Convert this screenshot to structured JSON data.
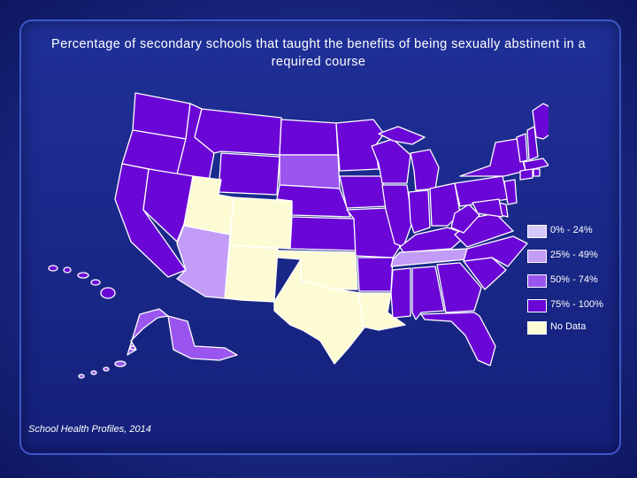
{
  "title": "Percentage of secondary schools that taught the benefits of being sexually abstinent in a required course",
  "source": "School Health Profiles, 2014",
  "legend": [
    {
      "label": "0% - 24%",
      "color": "#d7c8fb"
    },
    {
      "label": "25% - 49%",
      "color": "#c39cf7"
    },
    {
      "label": "50% - 74%",
      "color": "#9a55ee"
    },
    {
      "label": "75% - 100%",
      "color": "#6a06d6"
    },
    {
      "label": "No Data",
      "color": "#fdfbd4"
    }
  ],
  "colors": {
    "c0": "#d7c8fb",
    "c1": "#c39cf7",
    "c2": "#9a55ee",
    "c3": "#6a06d6",
    "nd": "#fdfbd4"
  }
}
